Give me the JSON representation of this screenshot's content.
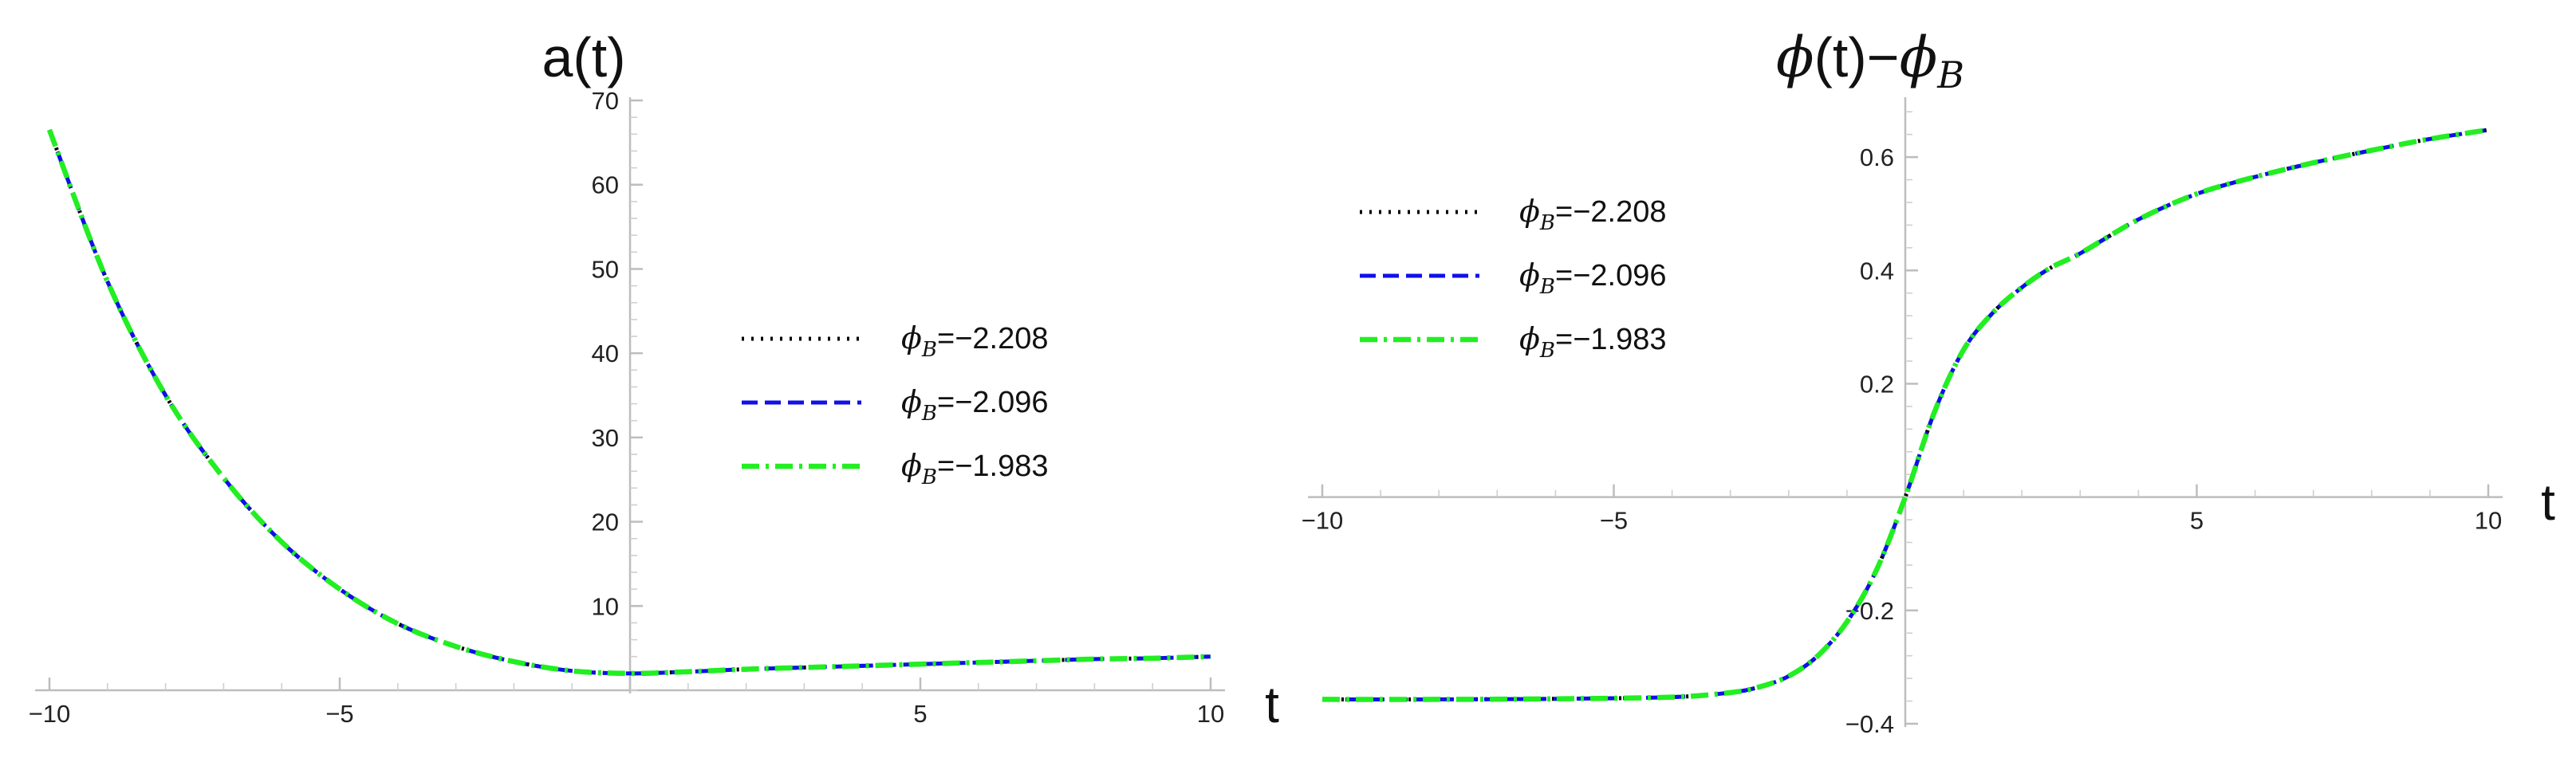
{
  "chart_data": [
    {
      "type": "line",
      "title": "a(t)",
      "xlabel": "t",
      "ylabel": "",
      "xlim": [
        -10,
        10
      ],
      "ylim": [
        0,
        70
      ],
      "x_ticks": [
        -10,
        -5,
        5,
        10
      ],
      "x_tick_labels": [
        "−10",
        "−5",
        "5",
        "10"
      ],
      "y_ticks": [
        10,
        20,
        30,
        40,
        50,
        60,
        70
      ],
      "y_tick_labels": [
        "10",
        "20",
        "30",
        "40",
        "50",
        "60",
        "70"
      ],
      "grid": false,
      "legend_position": "right-center",
      "x": [
        -10,
        -9,
        -8,
        -7,
        -6,
        -5,
        -4,
        -3,
        -2,
        -1,
        0,
        1,
        2,
        3,
        4,
        5,
        6,
        7,
        8,
        9,
        10
      ],
      "series": [
        {
          "name": "ϕB=−2.208",
          "name_prefix": "ϕ",
          "name_sub": "B",
          "name_value": "=−2.208",
          "color": "#000000",
          "dash": "dotted",
          "values": [
            66.5,
            48.5,
            35.0,
            25.2,
            17.6,
            12.0,
            7.9,
            5.2,
            3.4,
            2.3,
            2.0,
            2.2,
            2.5,
            2.7,
            2.9,
            3.1,
            3.3,
            3.5,
            3.7,
            3.8,
            4.0
          ]
        },
        {
          "name": "ϕB=−2.096",
          "name_prefix": "ϕ",
          "name_sub": "B",
          "name_value": "=−2.096",
          "color": "#1010e8",
          "dash": "dashed",
          "values": [
            66.5,
            48.5,
            35.0,
            25.2,
            17.6,
            12.0,
            7.9,
            5.2,
            3.4,
            2.3,
            2.0,
            2.2,
            2.5,
            2.7,
            2.9,
            3.1,
            3.3,
            3.5,
            3.7,
            3.8,
            4.0
          ]
        },
        {
          "name": "ϕB=−1.983",
          "name_prefix": "ϕ",
          "name_sub": "B",
          "name_value": "=−1.983",
          "color": "#22ee22",
          "dash": "dashdot",
          "values": [
            66.5,
            48.5,
            35.0,
            25.2,
            17.6,
            12.0,
            7.9,
            5.2,
            3.4,
            2.3,
            2.0,
            2.2,
            2.5,
            2.7,
            2.9,
            3.1,
            3.3,
            3.5,
            3.7,
            3.8,
            4.0
          ]
        }
      ]
    },
    {
      "type": "line",
      "title": "ϕ(t)−ϕB",
      "title_parts": {
        "phi": "ϕ",
        "arg": "(t)−",
        "phi2": "ϕ",
        "sub": "B"
      },
      "xlabel": "t",
      "ylabel": "",
      "xlim": [
        -10,
        10
      ],
      "ylim": [
        -0.4,
        0.7
      ],
      "x_ticks": [
        -10,
        -5,
        5,
        10
      ],
      "x_tick_labels": [
        "−10",
        "−5",
        "5",
        "10"
      ],
      "y_ticks": [
        -0.4,
        -0.2,
        0.2,
        0.4,
        0.6
      ],
      "y_tick_labels": [
        "−0.4",
        "−0.2",
        "0.2",
        "0.4",
        "0.6"
      ],
      "grid": false,
      "legend_position": "top-left",
      "x": [
        -10,
        -8,
        -6,
        -4,
        -3,
        -2.5,
        -2,
        -1.5,
        -1,
        -0.5,
        0,
        0.5,
        1,
        1.5,
        2,
        2.5,
        3,
        4,
        5,
        6,
        7,
        8,
        9,
        10
      ],
      "series": [
        {
          "name": "ϕB=−2.208",
          "name_prefix": "ϕ",
          "name_sub": "B",
          "name_value": "=−2.208",
          "color": "#000000",
          "dash": "dotted",
          "values": [
            -0.357,
            -0.357,
            -0.356,
            -0.353,
            -0.345,
            -0.335,
            -0.316,
            -0.28,
            -0.22,
            -0.13,
            0.0,
            0.15,
            0.26,
            0.325,
            0.37,
            0.405,
            0.43,
            0.49,
            0.535,
            0.565,
            0.59,
            0.612,
            0.632,
            0.648
          ]
        },
        {
          "name": "ϕB=−2.096",
          "name_prefix": "ϕ",
          "name_sub": "B",
          "name_value": "=−2.096",
          "color": "#1010e8",
          "dash": "dashed",
          "values": [
            -0.357,
            -0.357,
            -0.356,
            -0.353,
            -0.345,
            -0.335,
            -0.316,
            -0.28,
            -0.22,
            -0.13,
            0.0,
            0.15,
            0.26,
            0.325,
            0.37,
            0.405,
            0.43,
            0.49,
            0.535,
            0.565,
            0.59,
            0.612,
            0.632,
            0.648
          ]
        },
        {
          "name": "ϕB=−1.983",
          "name_prefix": "ϕ",
          "name_sub": "B",
          "name_value": "=−1.983",
          "color": "#22ee22",
          "dash": "dashdot",
          "values": [
            -0.357,
            -0.357,
            -0.356,
            -0.353,
            -0.345,
            -0.335,
            -0.316,
            -0.28,
            -0.22,
            -0.13,
            0.0,
            0.15,
            0.26,
            0.325,
            0.37,
            0.405,
            0.43,
            0.49,
            0.535,
            0.565,
            0.59,
            0.612,
            0.632,
            0.648
          ]
        }
      ]
    }
  ]
}
